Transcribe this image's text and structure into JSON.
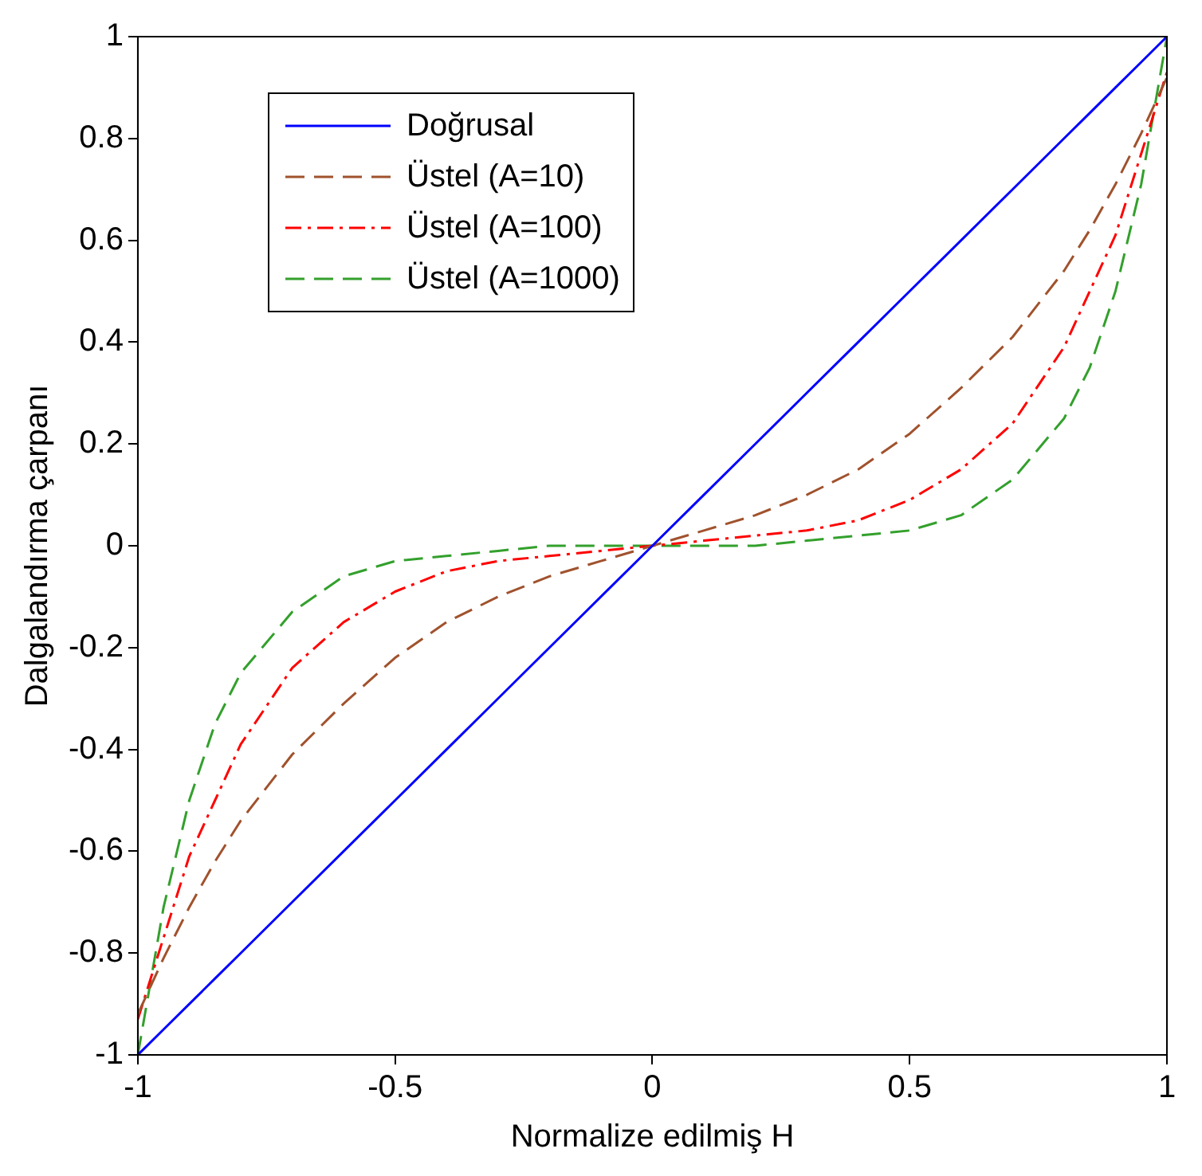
{
  "chart_data": {
    "type": "line",
    "xlabel": "Normalize edilmiş H",
    "ylabel": "Dalgalandırma çarpanı",
    "x": [
      -1,
      -0.95,
      -0.9,
      -0.85,
      -0.8,
      -0.7,
      -0.6,
      -0.5,
      -0.4,
      -0.3,
      -0.2,
      -0.1,
      0,
      0.1,
      0.2,
      0.3,
      0.4,
      0.5,
      0.6,
      0.7,
      0.8,
      0.85,
      0.9,
      0.95,
      1
    ],
    "series": [
      {
        "name": "Doğrusal",
        "color": "#0000ff",
        "line_style": "solid",
        "values": [
          -1,
          -0.95,
          -0.9,
          -0.85,
          -0.8,
          -0.7,
          -0.6,
          -0.5,
          -0.4,
          -0.3,
          -0.2,
          -0.1,
          0,
          0.1,
          0.2,
          0.3,
          0.4,
          0.5,
          0.6,
          0.7,
          0.8,
          0.85,
          0.9,
          0.95,
          1
        ]
      },
      {
        "name": "Üstel (A=10)",
        "color": "#a0522d",
        "line_style": "dashed",
        "values": [
          -0.92,
          -0.81,
          -0.71,
          -0.62,
          -0.54,
          -0.41,
          -0.31,
          -0.22,
          -0.15,
          -0.1,
          -0.06,
          -0.03,
          0,
          0.03,
          0.06,
          0.1,
          0.15,
          0.22,
          0.31,
          0.41,
          0.54,
          0.62,
          0.71,
          0.81,
          0.92
        ]
      },
      {
        "name": "Üstel (A=100)",
        "color": "#ff0000",
        "line_style": "dashdot",
        "values": [
          -0.93,
          -0.77,
          -0.61,
          -0.5,
          -0.39,
          -0.24,
          -0.15,
          -0.09,
          -0.05,
          -0.03,
          -0.02,
          -0.01,
          0,
          0.01,
          0.02,
          0.03,
          0.05,
          0.09,
          0.15,
          0.24,
          0.39,
          0.5,
          0.61,
          0.77,
          0.93
        ]
      },
      {
        "name": "Üstel (A=1000)",
        "color": "#33a02c",
        "line_style": "dashed",
        "values": [
          -1,
          -0.71,
          -0.5,
          -0.35,
          -0.25,
          -0.13,
          -0.06,
          -0.03,
          -0.02,
          -0.01,
          0,
          0,
          0,
          0,
          0,
          0.01,
          0.02,
          0.03,
          0.06,
          0.13,
          0.25,
          0.35,
          0.5,
          0.71,
          1
        ]
      }
    ],
    "xlim": [
      -1,
      1
    ],
    "xticks": [
      -1,
      -0.5,
      0,
      0.5,
      1
    ],
    "ylim": [
      -1,
      1
    ],
    "yticks": [
      -1,
      -0.8,
      -0.6,
      -0.4,
      -0.2,
      0,
      0.2,
      0.4,
      0.6,
      0.8,
      1
    ],
    "grid": false,
    "legend": "top left",
    "marker": "none"
  }
}
